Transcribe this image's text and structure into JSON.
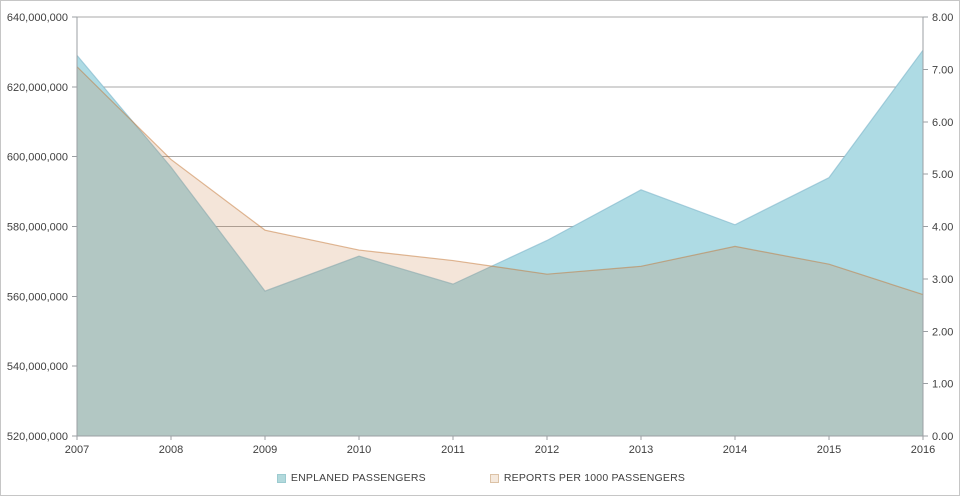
{
  "chart_data": {
    "type": "area",
    "title": "",
    "categories": [
      "2007",
      "2008",
      "2009",
      "2010",
      "2011",
      "2012",
      "2013",
      "2014",
      "2015",
      "2016"
    ],
    "series": [
      {
        "name": "ENPLANED PASSENGERS",
        "axis": "left",
        "values": [
          629000000,
          597000000,
          561500000,
          571500000,
          563500000,
          576000000,
          590500000,
          580500000,
          594000000,
          630500000
        ],
        "fill": "#aedbe4",
        "stroke": "rgba(130,185,205,0.65)",
        "legend_swatch": "#b2d9dc",
        "legend_swatch_border": "#9ccbd0"
      },
      {
        "name": "REPORTS PER 1000 PASSENGERS",
        "axis": "right",
        "values": [
          7.05,
          5.28,
          3.93,
          3.55,
          3.35,
          3.09,
          3.24,
          3.62,
          3.28,
          2.7
        ],
        "fill": "rgba(195,118,52,0.19)",
        "stroke": "rgba(195,118,52,0.5)",
        "legend_swatch": "#f5e9dd",
        "legend_swatch_border": "#dcc2a6"
      }
    ],
    "left_axis": {
      "min": 520000000,
      "max": 640000000,
      "step": 20000000,
      "tick_labels": [
        "640,000,000",
        "620,000,000",
        "600,000,000",
        "580,000,000",
        "560,000,000",
        "540,000,000",
        "520,000,000"
      ]
    },
    "right_axis": {
      "min": 0,
      "max": 8,
      "step": 1,
      "tick_labels": [
        "8.00",
        "7.00",
        "6.00",
        "5.00",
        "4.00",
        "3.00",
        "2.00",
        "1.00",
        "0.00"
      ]
    },
    "x_axis": {
      "tick_labels": [
        "2007",
        "2008",
        "2009",
        "2010",
        "2011",
        "2012",
        "2013",
        "2014",
        "2015",
        "2016"
      ]
    },
    "grid": true,
    "legend_position": "bottom",
    "colors": {
      "gridline": "#a8a8a8",
      "axis_line": "#9b9fa3",
      "tick": "#9b9fa3",
      "text": "#404040",
      "plot_background": "#ffffff"
    }
  }
}
